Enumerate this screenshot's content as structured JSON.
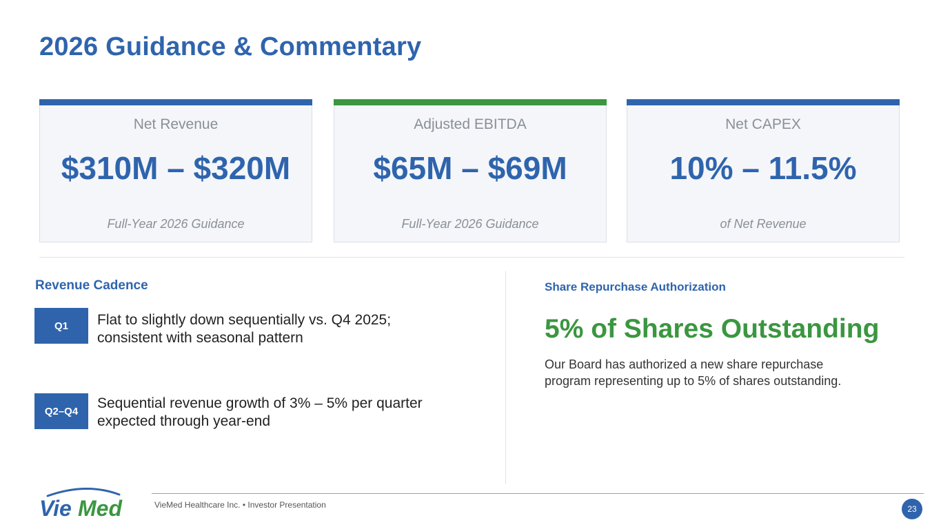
{
  "title": "2026 Guidance & Commentary",
  "colors": {
    "primary_blue": "#2f64ad",
    "accent_green": "#3b9640"
  },
  "cards": [
    {
      "label": "Net Revenue",
      "value": "$310M – $320M",
      "sub": "Full-Year 2026 Guidance",
      "bar_color": "#2f64ad"
    },
    {
      "label": "Adjusted EBITDA",
      "value": "$65M – $69M",
      "sub": "Full-Year 2026 Guidance",
      "bar_color": "#3b9640"
    },
    {
      "label": "Net CAPEX",
      "value": "10% – 11.5%",
      "sub": "of Net Revenue",
      "bar_color": "#2f64ad"
    }
  ],
  "revenue_cadence": {
    "heading": "Revenue Cadence",
    "items": [
      {
        "badge": "Q1",
        "text_line1": "Flat to slightly down sequentially vs. Q4 2025;",
        "text_line2": "consistent with seasonal pattern"
      },
      {
        "badge": "Q2–Q4",
        "text_line1": "Sequential revenue growth of 3% – 5% per quarter",
        "text_line2": "expected through year-end"
      }
    ]
  },
  "repurchase": {
    "heading": "Share Repurchase Authorization",
    "headline": "5% of Shares Outstanding",
    "body_line1": "Our Board has authorized a new share repurchase",
    "body_line2": "program representing up to 5% of shares outstanding."
  },
  "footer": {
    "logo_text": "VieMed",
    "text": "VieMed Healthcare Inc.  •  Investor Presentation",
    "page_number": "23"
  }
}
